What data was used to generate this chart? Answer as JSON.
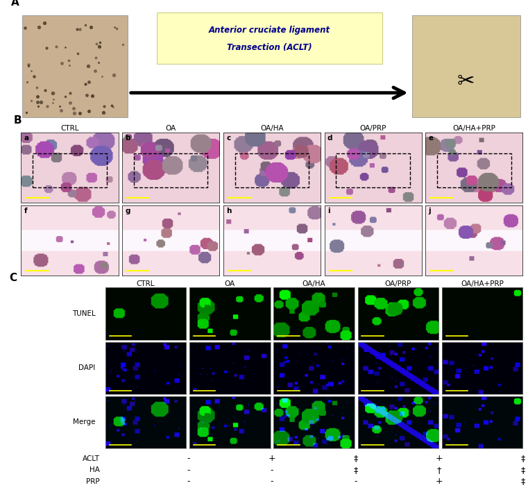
{
  "panel_A_label": "A",
  "panel_B_label": "B",
  "panel_C_label": "C",
  "arrow_text_line1": "Anterior cruciate ligament",
  "arrow_text_line2": "Transection (ACLT)",
  "arrow_text_color": "#00008B",
  "arrow_box_color": "#FFFFC0",
  "B_col_labels": [
    "CTRL",
    "OA",
    "OA/HA",
    "OA/PRP",
    "OA/HA+PRP"
  ],
  "B_row_letters_top": [
    "a",
    "b",
    "c",
    "d",
    "e"
  ],
  "B_row_letters_bot": [
    "f",
    "g",
    "h",
    "i",
    "j"
  ],
  "C_col_labels": [
    "CTRL",
    "OA",
    "OA/HA",
    "OA/PRP",
    "OA/HA+PRP"
  ],
  "C_row_labels": [
    "TUNEL",
    "DAPI",
    "Merge"
  ],
  "bottom_row_labels": [
    "ACLT",
    "HA",
    "PRP"
  ],
  "bottom_col_symbols": [
    [
      "-",
      "-",
      "-"
    ],
    [
      "+",
      "-",
      "-"
    ],
    [
      "‡",
      "‡",
      "-"
    ],
    [
      "+",
      "†",
      "+"
    ],
    [
      "‡",
      "‡",
      "‡"
    ]
  ],
  "bg_color": "#ffffff"
}
